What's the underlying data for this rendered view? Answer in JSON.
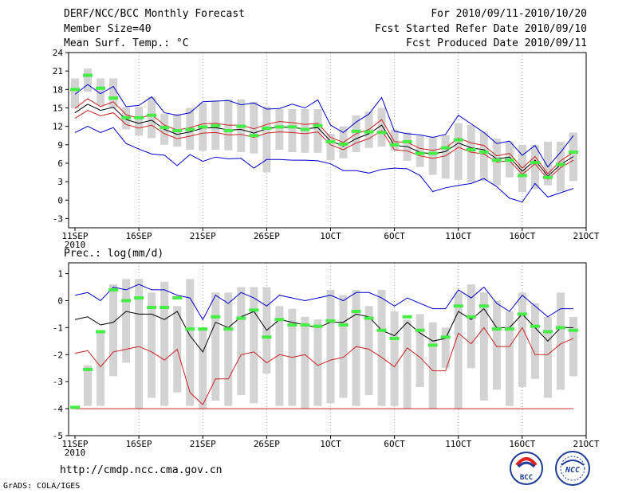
{
  "header": {
    "title": "DERF/NCC/BCC Monthly Forecast",
    "member_size": "Member Size=40",
    "variable": "Mean Surf. Temp.: °C",
    "period": "For 2010/09/11-2010/10/20",
    "fcst_started": "Fcst Started Refer Date 2010/09/10",
    "fcst_produced": "Fcst Produced Date 2010/09/11"
  },
  "footer": {
    "url": "http://cmdp.ncc.cma.gov.cn",
    "credit": "GrADS: COLA/IGES",
    "logo_bcc": "BCC",
    "logo_ncc": "NCC"
  },
  "colors": {
    "box": "#d3d3d3",
    "median": "#44ee44",
    "mean": "#000000",
    "inner": "#cc2222",
    "outer": "#0000cc"
  },
  "chart_data": [
    {
      "type": "line",
      "title": "Mean Surf. Temp.: °C",
      "ylabel": "°C",
      "ylim": [
        -4.5,
        24
      ],
      "yticks": [
        -3,
        0,
        3,
        6,
        9,
        12,
        15,
        18,
        21,
        24
      ],
      "xlim": [
        0.5,
        41
      ],
      "xticks": [
        {
          "day": 1,
          "label": "11SEP",
          "sub": "2010"
        },
        {
          "day": 6,
          "label": "16SEP"
        },
        {
          "day": 11,
          "label": "21SEP"
        },
        {
          "day": 16,
          "label": "26SEP"
        },
        {
          "day": 21,
          "label": "1OCT"
        },
        {
          "day": 26,
          "label": "6OCT"
        },
        {
          "day": 31,
          "label": "11OCT"
        },
        {
          "day": 36,
          "label": "16OCT"
        },
        {
          "day": 41,
          "label": "21OCT"
        }
      ],
      "box_low": [
        14.9,
        17.6,
        15.4,
        15.0,
        11.5,
        10.5,
        10.1,
        9.0,
        8.7,
        8.2,
        8.0,
        8.2,
        8.1,
        7.8,
        7.6,
        4.5,
        8.2,
        7.8,
        7.7,
        7.7,
        6.5,
        6.8,
        7.8,
        8.5,
        8.7,
        8.0,
        6.4,
        5.4,
        4.1,
        3.5,
        3.3,
        2.9,
        3.1,
        2.4,
        3.7,
        1.3,
        1.8,
        2.4,
        1.4,
        3.1
      ],
      "box_high": [
        19.8,
        21.4,
        19.8,
        19.8,
        15.1,
        15.2,
        16.8,
        14.0,
        14.0,
        15.0,
        15.8,
        16.2,
        16.4,
        16.4,
        16.0,
        15.2,
        14.8,
        14.8,
        14.8,
        14.8,
        10.8,
        12.0,
        13.8,
        14.4,
        15.0,
        11.5,
        11.0,
        10.5,
        10.3,
        10.6,
        12.5,
        12.2,
        11.2,
        10.0,
        9.5,
        9.0,
        9.0,
        9.5,
        9.5,
        11.0
      ],
      "median": [
        18.0,
        20.3,
        18.2,
        16.6,
        13.4,
        13.4,
        13.8,
        11.8,
        11.3,
        11.5,
        11.9,
        12.1,
        11.3,
        12.0,
        10.5,
        11.7,
        11.9,
        11.9,
        11.5,
        12.1,
        9.5,
        9.1,
        11.2,
        11.1,
        11.0,
        9.0,
        9.5,
        7.6,
        7.6,
        8.5,
        9.8,
        8.2,
        7.8,
        6.5,
        6.5,
        4.0,
        6.1,
        3.7,
        5.8,
        7.8
      ],
      "series": [
        {
          "name": "max",
          "role": "outer",
          "values": [
            17.2,
            18.8,
            17.3,
            18.5,
            15.2,
            15.4,
            16.8,
            14.2,
            13.8,
            14.2,
            16.0,
            16.1,
            16.2,
            15.5,
            15.8,
            14.8,
            14.9,
            15.6,
            15.0,
            16.3,
            12.2,
            11.0,
            12.7,
            14.0,
            16.7,
            11.2,
            10.8,
            10.6,
            10.2,
            10.7,
            13.8,
            12.4,
            11.0,
            9.2,
            9.6,
            7.3,
            8.9,
            5.4,
            7.8,
            10.5
          ]
        },
        {
          "name": "upper",
          "role": "inner",
          "values": [
            14.9,
            16.5,
            15.2,
            16.0,
            13.9,
            13.3,
            13.9,
            12.2,
            11.4,
            11.8,
            12.4,
            12.5,
            12.2,
            12.2,
            11.6,
            12.3,
            12.8,
            12.6,
            12.3,
            12.5,
            10.2,
            9.4,
            10.8,
            11.5,
            13.1,
            9.5,
            9.4,
            8.4,
            8.1,
            8.5,
            10.1,
            9.3,
            8.9,
            7.2,
            7.6,
            5.2,
            7.1,
            4.3,
            6.4,
            7.8
          ]
        },
        {
          "name": "mean",
          "role": "mean",
          "values": [
            14.2,
            15.6,
            14.6,
            15.1,
            13.1,
            12.5,
            13.0,
            11.5,
            10.7,
            11.1,
            11.7,
            11.8,
            11.4,
            11.5,
            10.9,
            11.6,
            11.9,
            11.8,
            11.6,
            11.8,
            9.6,
            8.8,
            10.0,
            10.8,
            12.2,
            8.9,
            8.7,
            7.8,
            7.5,
            7.9,
            9.3,
            8.5,
            8.2,
            6.7,
            7.0,
            4.7,
            6.5,
            3.9,
            5.8,
            7.1
          ]
        },
        {
          "name": "lower",
          "role": "inner",
          "values": [
            13.3,
            14.6,
            13.7,
            14.2,
            12.3,
            11.7,
            12.2,
            10.8,
            10.0,
            10.4,
            10.9,
            11.0,
            10.6,
            10.7,
            10.2,
            10.9,
            11.1,
            11.0,
            10.8,
            11.1,
            9.0,
            8.2,
            9.3,
            10.0,
            11.3,
            8.2,
            8.0,
            7.2,
            6.8,
            7.2,
            8.6,
            7.8,
            7.5,
            6.2,
            6.4,
            4.2,
            5.9,
            3.4,
            5.3,
            6.5
          ]
        },
        {
          "name": "min",
          "role": "outer",
          "values": [
            11.0,
            12.0,
            11.0,
            11.8,
            9.2,
            8.3,
            7.5,
            7.3,
            5.6,
            7.4,
            6.3,
            7.0,
            6.7,
            6.8,
            5.2,
            6.6,
            6.6,
            6.5,
            6.5,
            6.4,
            5.9,
            4.8,
            4.8,
            4.4,
            5.0,
            5.2,
            5.1,
            4.0,
            1.4,
            2.0,
            2.4,
            2.7,
            3.5,
            2.2,
            0.3,
            -0.3,
            2.7,
            0.5,
            1.2,
            1.9
          ]
        }
      ]
    },
    {
      "type": "line",
      "title": "Prec.: log(mm/d)",
      "ylabel": "log(mm/d)",
      "ylim": [
        -5,
        1.4
      ],
      "yticks": [
        -5,
        -4,
        -3,
        -2,
        -1,
        0,
        1
      ],
      "xlim": [
        0.5,
        41
      ],
      "xticks": [
        {
          "day": 1,
          "label": "11SEP",
          "sub": "2010"
        },
        {
          "day": 6,
          "label": "16SEP"
        },
        {
          "day": 11,
          "label": "21SEP"
        },
        {
          "day": 16,
          "label": "26SEP"
        },
        {
          "day": 21,
          "label": "1OCT"
        },
        {
          "day": 26,
          "label": "6OCT"
        },
        {
          "day": 31,
          "label": "11OCT"
        },
        {
          "day": 36,
          "label": "16OCT"
        },
        {
          "day": 41,
          "label": "21OCT"
        }
      ],
      "floor": -4,
      "box_low": [
        -4.0,
        -3.9,
        -3.9,
        -2.8,
        -2.3,
        -4.0,
        -3.6,
        -3.9,
        -3.4,
        -3.9,
        -4.0,
        -3.7,
        -3.9,
        -3.5,
        -3.8,
        -2.7,
        -3.9,
        -3.9,
        -4.0,
        -3.9,
        -3.8,
        -3.6,
        -3.9,
        -3.5,
        -3.9,
        -3.9,
        -4.0,
        -3.2,
        -4.0,
        -2.5,
        -4.0,
        -2.5,
        -3.7,
        -3.3,
        -3.9,
        -3.2,
        -2.9,
        -3.6,
        -3.3,
        -2.8
      ],
      "box_high": [
        -4.0,
        -2.4,
        -1.1,
        0.6,
        0.8,
        0.8,
        0.3,
        0.7,
        -0.2,
        0.8,
        -1.1,
        0.3,
        0.3,
        0.5,
        0.5,
        0.5,
        -0.2,
        -0.3,
        -0.6,
        -0.7,
        0.4,
        0.2,
        0.4,
        -0.2,
        0.4,
        -0.4,
        -0.7,
        -0.5,
        -0.8,
        -1.0,
        0.3,
        0.6,
        0.3,
        0.0,
        -0.4,
        0.3,
        -0.1,
        -0.6,
        0.3,
        -0.6
      ],
      "median": [
        -3.95,
        -2.55,
        -1.15,
        0.4,
        0.0,
        0.1,
        -0.25,
        -0.25,
        0.1,
        -1.05,
        -1.05,
        -0.6,
        -1.05,
        -0.65,
        -0.35,
        -1.35,
        -0.7,
        -0.9,
        -0.9,
        -0.95,
        -0.75,
        -0.9,
        -0.4,
        -0.65,
        -1.1,
        -1.4,
        -0.6,
        -1.1,
        -1.65,
        -1.35,
        -0.2,
        -0.6,
        -0.2,
        -1.05,
        -1.05,
        -0.5,
        -0.95,
        -1.15,
        -1.0,
        -1.1
      ],
      "series": [
        {
          "name": "max",
          "role": "outer",
          "values": [
            0.2,
            0.3,
            0.0,
            0.5,
            0.4,
            0.6,
            0.4,
            0.4,
            0.2,
            0.1,
            -0.7,
            0.2,
            -0.1,
            0.3,
            0.1,
            -0.2,
            0.2,
            0.1,
            0.0,
            0.1,
            0.2,
            0.0,
            0.3,
            0.3,
            0.1,
            -0.2,
            0.1,
            -0.1,
            -0.3,
            -0.3,
            0.4,
            0.1,
            0.5,
            -0.1,
            -0.4,
            0.2,
            -0.2,
            -0.6,
            -0.3,
            -0.3
          ]
        },
        {
          "name": "mean",
          "role": "mean",
          "values": [
            -0.7,
            -0.6,
            -0.9,
            -0.8,
            -0.4,
            -0.5,
            -0.5,
            -0.7,
            -0.4,
            -1.3,
            -1.9,
            -0.8,
            -1.0,
            -0.6,
            -0.4,
            -1.1,
            -0.7,
            -0.8,
            -0.9,
            -1.0,
            -0.8,
            -0.8,
            -0.5,
            -0.6,
            -1.1,
            -1.3,
            -0.8,
            -1.2,
            -1.5,
            -1.4,
            -0.4,
            -0.7,
            -0.3,
            -1.0,
            -1.0,
            -0.5,
            -1.0,
            -1.5,
            -1.0,
            -1.0
          ]
        },
        {
          "name": "lower",
          "role": "inner",
          "values": [
            -1.95,
            -1.85,
            -2.45,
            -1.9,
            -1.8,
            -1.7,
            -1.9,
            -2.2,
            -1.8,
            -3.4,
            -3.85,
            -2.9,
            -2.9,
            -2.0,
            -1.9,
            -2.3,
            -2.0,
            -2.1,
            -2.0,
            -2.4,
            -2.2,
            -2.1,
            -1.7,
            -1.8,
            -2.1,
            -2.45,
            -1.75,
            -2.1,
            -2.6,
            -2.6,
            -1.2,
            -1.6,
            -1.0,
            -1.7,
            -1.7,
            -1.0,
            -2.0,
            -2.0,
            -1.6,
            -1.4
          ]
        },
        {
          "name": "min",
          "role": "inner",
          "values": [
            -4.0,
            -4.0,
            -4.0,
            -4.0,
            -4.0,
            -4.0,
            -4.0,
            -4.0,
            -4.0,
            -4.0,
            -4.0,
            -4.0,
            -4.0,
            -4.0,
            -4.0,
            -4.0,
            -4.0,
            -4.0,
            -4.0,
            -4.0,
            -4.0,
            -4.0,
            -4.0,
            -4.0,
            -4.0,
            -4.0,
            -4.0,
            -4.0,
            -4.0,
            -4.0,
            -4.0,
            -4.0,
            -4.0,
            -4.0,
            -4.0,
            -4.0,
            -4.0,
            -4.0,
            -4.0,
            -4.0
          ]
        }
      ]
    }
  ]
}
